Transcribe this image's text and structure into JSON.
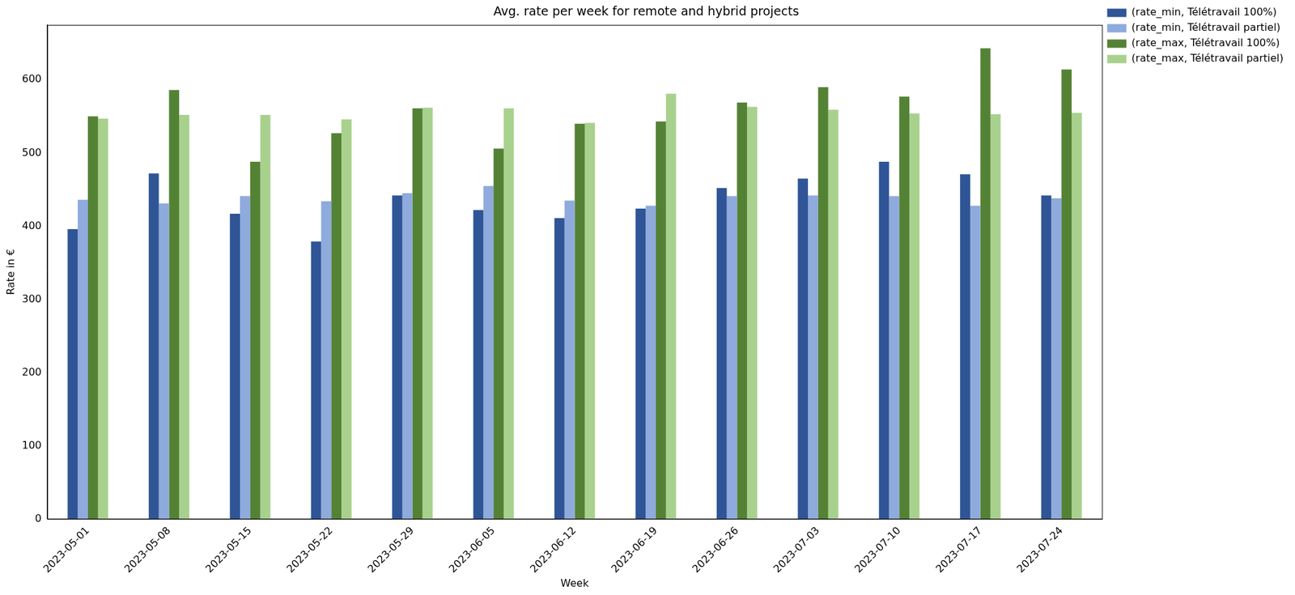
{
  "chart_data": {
    "type": "bar",
    "title": "Avg. rate per week for remote and hybrid projects",
    "x_label": "Week",
    "y_label": "Rate in €",
    "categories": [
      "2023-05-01",
      "2023-05-08",
      "2023-05-15",
      "2023-05-22",
      "2023-05-29",
      "2023-06-05",
      "2023-06-12",
      "2023-06-19",
      "2023-06-26",
      "2023-07-03",
      "2023-07-10",
      "2023-07-17",
      "2023-07-24"
    ],
    "series": [
      {
        "name": "(rate_min, Télétravail 100%)",
        "color": "#2f5597",
        "values": [
          396,
          472,
          417,
          379,
          442,
          422,
          411,
          424,
          452,
          465,
          488,
          471,
          442
        ]
      },
      {
        "name": "(rate_min, Télétravail partiel)",
        "color": "#8faadc",
        "values": [
          436,
          431,
          441,
          434,
          445,
          455,
          435,
          428,
          441,
          442,
          441,
          428,
          438
        ]
      },
      {
        "name": "(rate_max, Télétravail 100%)",
        "color": "#548235",
        "values": [
          550,
          586,
          488,
          527,
          561,
          506,
          540,
          543,
          569,
          590,
          577,
          643,
          614
        ]
      },
      {
        "name": "(rate_max, Télétravail partiel)",
        "color": "#a9d18e",
        "values": [
          547,
          552,
          552,
          546,
          562,
          561,
          541,
          581,
          563,
          559,
          554,
          553,
          555
        ]
      }
    ],
    "ylim": [
      0,
      675
    ],
    "yticks": [
      0,
      100,
      200,
      300,
      400,
      500,
      600
    ],
    "grid": false,
    "legend": "right"
  }
}
